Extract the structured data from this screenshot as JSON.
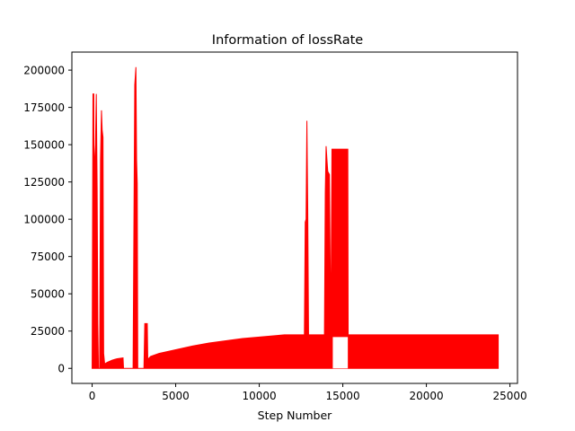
{
  "chart_data": {
    "type": "area",
    "title": "Information of lossRate",
    "xlabel": "Step Number",
    "ylabel": "",
    "xlim": [
      -1212,
      25452
    ],
    "ylim": [
      -10100,
      212100
    ],
    "x_ticks": [
      0,
      5000,
      10000,
      15000,
      20000,
      25000
    ],
    "y_ticks": [
      0,
      25000,
      50000,
      75000,
      100000,
      125000,
      150000,
      175000,
      200000
    ],
    "x_tick_labels": [
      "0",
      "5000",
      "10000",
      "15000",
      "20000",
      "25000"
    ],
    "y_tick_labels": [
      "0",
      "25000",
      "50000",
      "75000",
      "100000",
      "125000",
      "150000",
      "175000",
      "200000"
    ],
    "grid": false,
    "legend": "none",
    "series": [
      {
        "color": "#ff0000",
        "fill_lower": 0,
        "envelope": [
          [
            0,
            0
          ],
          [
            50,
            184000
          ],
          [
            100,
            184000
          ],
          [
            120,
            70000
          ],
          [
            150,
            140000
          ],
          [
            200,
            150000
          ],
          [
            250,
            184000
          ],
          [
            300,
            120000
          ],
          [
            340,
            30000
          ],
          [
            380,
            0
          ],
          [
            450,
            0
          ],
          [
            500,
            140000
          ],
          [
            560,
            173000
          ],
          [
            600,
            160000
          ],
          [
            650,
            155000
          ],
          [
            690,
            10000
          ],
          [
            750,
            3000
          ],
          [
            900,
            4000
          ],
          [
            1200,
            5500
          ],
          [
            1500,
            6500
          ],
          [
            1850,
            7000
          ],
          [
            1880,
            0
          ],
          [
            2450,
            0
          ],
          [
            2550,
            190000
          ],
          [
            2620,
            202000
          ],
          [
            2660,
            140000
          ],
          [
            2700,
            124000
          ],
          [
            2730,
            0
          ],
          [
            3100,
            0
          ],
          [
            3150,
            30000
          ],
          [
            3300,
            30000
          ],
          [
            3330,
            6000
          ],
          [
            3500,
            8000
          ],
          [
            4000,
            10000
          ],
          [
            5000,
            12500
          ],
          [
            6000,
            15000
          ],
          [
            7000,
            17000
          ],
          [
            8000,
            18500
          ],
          [
            9000,
            20000
          ],
          [
            10000,
            21000
          ],
          [
            11000,
            22000
          ],
          [
            11500,
            22500
          ],
          [
            12700,
            22500
          ],
          [
            12750,
            98000
          ],
          [
            12800,
            100000
          ],
          [
            12850,
            166000
          ],
          [
            12900,
            108000
          ],
          [
            12950,
            22500
          ],
          [
            13900,
            22500
          ],
          [
            13950,
            118000
          ],
          [
            14000,
            149000
          ],
          [
            14050,
            140000
          ],
          [
            14100,
            132000
          ],
          [
            14200,
            130000
          ],
          [
            14280,
            22500
          ],
          [
            14350,
            147000
          ],
          [
            15300,
            147000
          ],
          [
            15320,
            22500
          ],
          [
            24300,
            22500
          ],
          [
            24300,
            0
          ]
        ],
        "gaps": [
          {
            "x": [
              14400,
              15300
            ],
            "y": [
              0,
              21000
            ]
          }
        ]
      }
    ]
  }
}
